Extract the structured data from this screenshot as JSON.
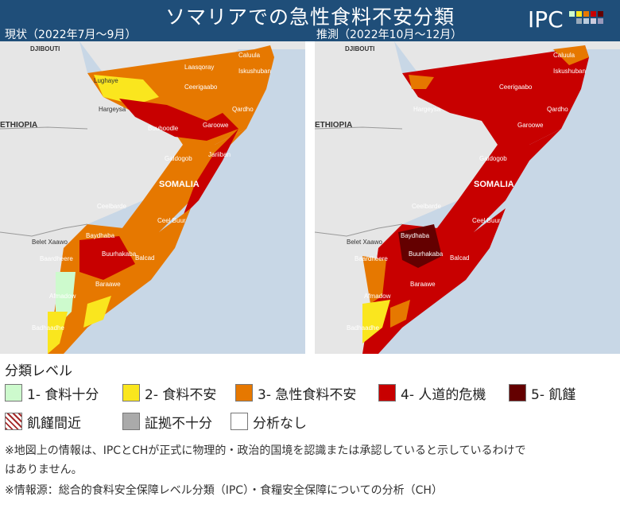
{
  "header": {
    "title": "ソマリアでの急性食料不安分類",
    "current_label": "現状（2022年7月〜9月）",
    "projection_label": "推測（2022年10月〜12月）",
    "logo_text": "IPC"
  },
  "colors": {
    "header_bg": "#1f4e79",
    "phase1": "#cdfacd",
    "phase2": "#fae61e",
    "phase3": "#e67800",
    "phase4": "#c80000",
    "phase5": "#640000",
    "insufficient": "#aaaaaa",
    "sea": "#c8d7e6",
    "land": "#e6e6e6"
  },
  "maps": {
    "left": {
      "labels": [
        "DJIBOUTI",
        "ETHIOPIA",
        "SOMALIA",
        "Caluula",
        "Iskushuban",
        "Laasqoray",
        "Ceerigaabo",
        "Qardho",
        "Lughaye",
        "Hargeysa",
        "Buuhoodle",
        "Garoowe",
        "Galdogob",
        "Jariiban",
        "Ceelbarde",
        "Ceel Buur",
        "Belet Xaawo",
        "Baydhaba",
        "Buurhakaba",
        "Baardheere",
        "Afmadow",
        "Baraawe",
        "Badhaadhe",
        "Balcad"
      ]
    },
    "right": {
      "labels": [
        "DJIBOUTI",
        "ETHIOPIA",
        "SOMALIA",
        "Caluula",
        "Iskushuban",
        "Ceerigaabo",
        "Qardho",
        "Hargeysa",
        "Garoowe",
        "Galdogob",
        "Ceelbarde",
        "Ceel Buur",
        "Belet Xaawo",
        "Baydhaba",
        "Buurhakaba",
        "Baardheere",
        "Afmadow",
        "Baraawe",
        "Badhaadhe",
        "Balcad"
      ]
    }
  },
  "legend": {
    "title": "分類レベル",
    "items": [
      {
        "label": "1- 食料十分",
        "color": "#cdfacd"
      },
      {
        "label": "2- 食料不安",
        "color": "#fae61e"
      },
      {
        "label": "3- 急性食料不安",
        "color": "#e67800"
      },
      {
        "label": "4- 人道的危機",
        "color": "#c80000"
      },
      {
        "label": "5- 飢饉",
        "color": "#640000"
      },
      {
        "label": "飢饉間近",
        "color": "hatched"
      },
      {
        "label": "証拠不十分",
        "color": "#aaaaaa"
      },
      {
        "label": "分析なし",
        "color": "#ffffff"
      }
    ]
  },
  "notes": {
    "note1": "※地図上の情報は、IPCとCHが正式に物理的・政治的国境を認識または承認していると示しているわけで",
    "note1b": "はありません。",
    "note2": "※情報源：総合的食料安全保障レベル分類（IPC）・食糧安全保障についての分析（CH）"
  }
}
